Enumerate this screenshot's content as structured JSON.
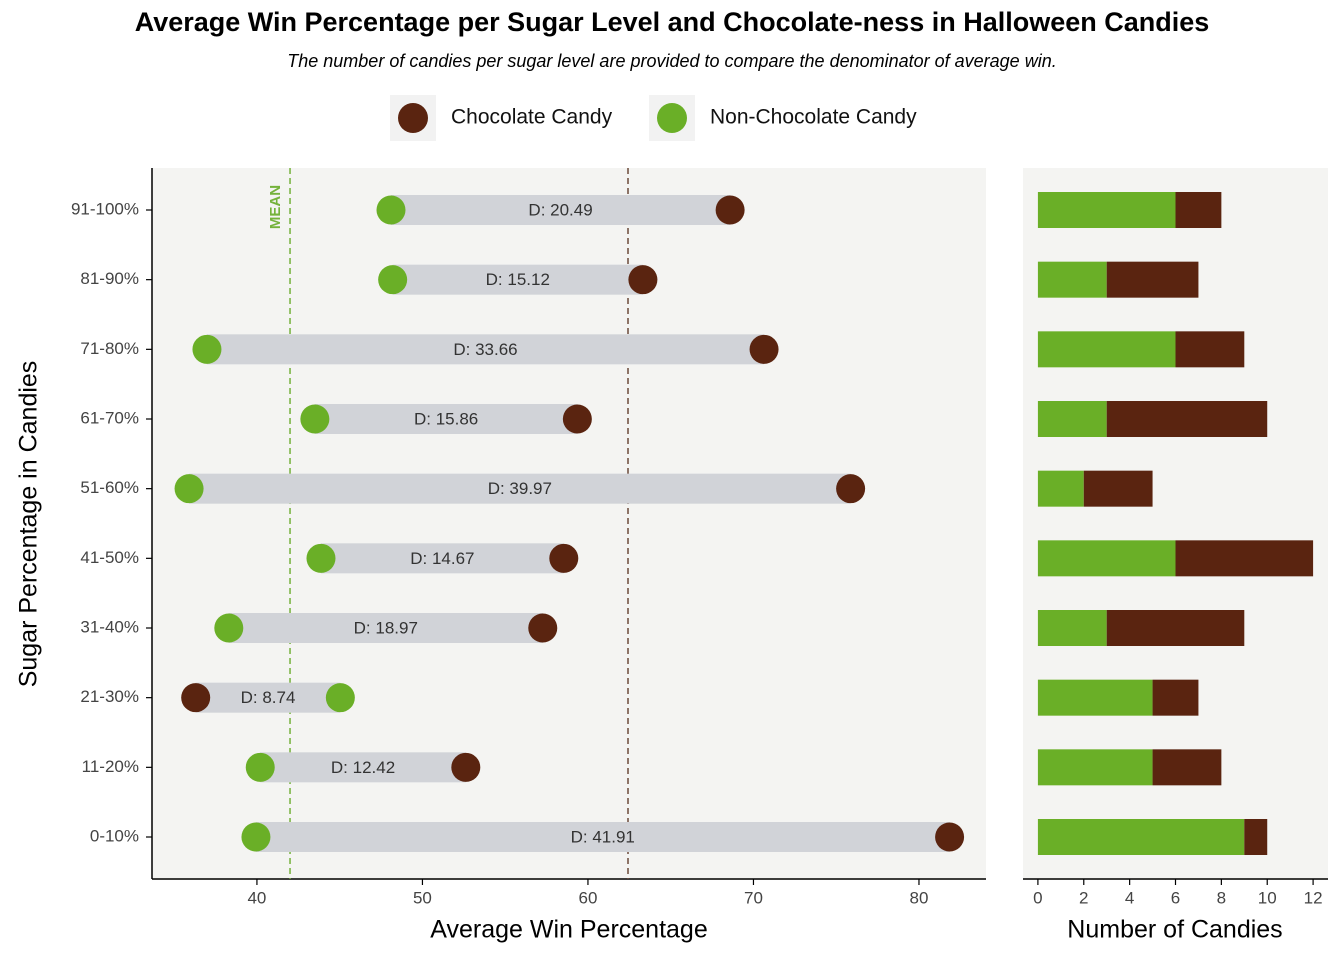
{
  "chart_data": [
    {
      "type": "dumbbell",
      "title": "Average Win Percentage per Sugar Level and Chocolate-ness in Halloween Candies",
      "subtitle": "The number of candies per sugar level are provided to compare the denominator of average win.",
      "x_label": "Average Win Percentage",
      "y_label": "Sugar Percentage in Candies",
      "categories": [
        "0-10%",
        "11-20%",
        "21-30%",
        "31-40%",
        "41-50%",
        "51-60%",
        "61-70%",
        "71-80%",
        "81-90%",
        "91-100%"
      ],
      "series": [
        {
          "name": "Chocolate Candy",
          "color": "#5a2410",
          "values": [
            81.85,
            52.62,
            36.3,
            57.27,
            58.54,
            75.87,
            59.36,
            70.64,
            63.32,
            68.59
          ]
        },
        {
          "name": "Non-Chocolate Candy",
          "color": "#6aaf27",
          "values": [
            39.94,
            40.2,
            45.04,
            38.3,
            43.87,
            35.9,
            43.5,
            36.98,
            48.2,
            48.1
          ]
        }
      ],
      "difference_labels": [
        "D:  41.91",
        "D:  12.42",
        "D:  8.74",
        "D:  18.97",
        "D:  14.67",
        "D:  39.97",
        "D:  15.86",
        "D:  33.66",
        "D:  15.12",
        "D:  20.49"
      ],
      "mean_lines": [
        {
          "value": 42.0,
          "color": "#74b23b",
          "label": "MEAN"
        },
        {
          "value": 62.42,
          "color": "#6b4a3a"
        }
      ],
      "xlim": [
        33.66,
        84.05
      ],
      "xticks": [
        40,
        50,
        60,
        70,
        80
      ]
    },
    {
      "type": "stacked-bar",
      "x_label": "Number of Candies",
      "series": [
        {
          "color": "#6aaf27",
          "values": [
            9,
            5,
            5,
            3,
            6,
            2,
            3,
            6,
            3,
            6
          ]
        },
        {
          "color": "#5a2410",
          "values": [
            1,
            3,
            2,
            6,
            6,
            3,
            7,
            3,
            4,
            2
          ]
        }
      ],
      "xlim": [
        -0.65,
        12.65
      ],
      "xticks": [
        0,
        2,
        4,
        6,
        8,
        10,
        12
      ]
    }
  ]
}
